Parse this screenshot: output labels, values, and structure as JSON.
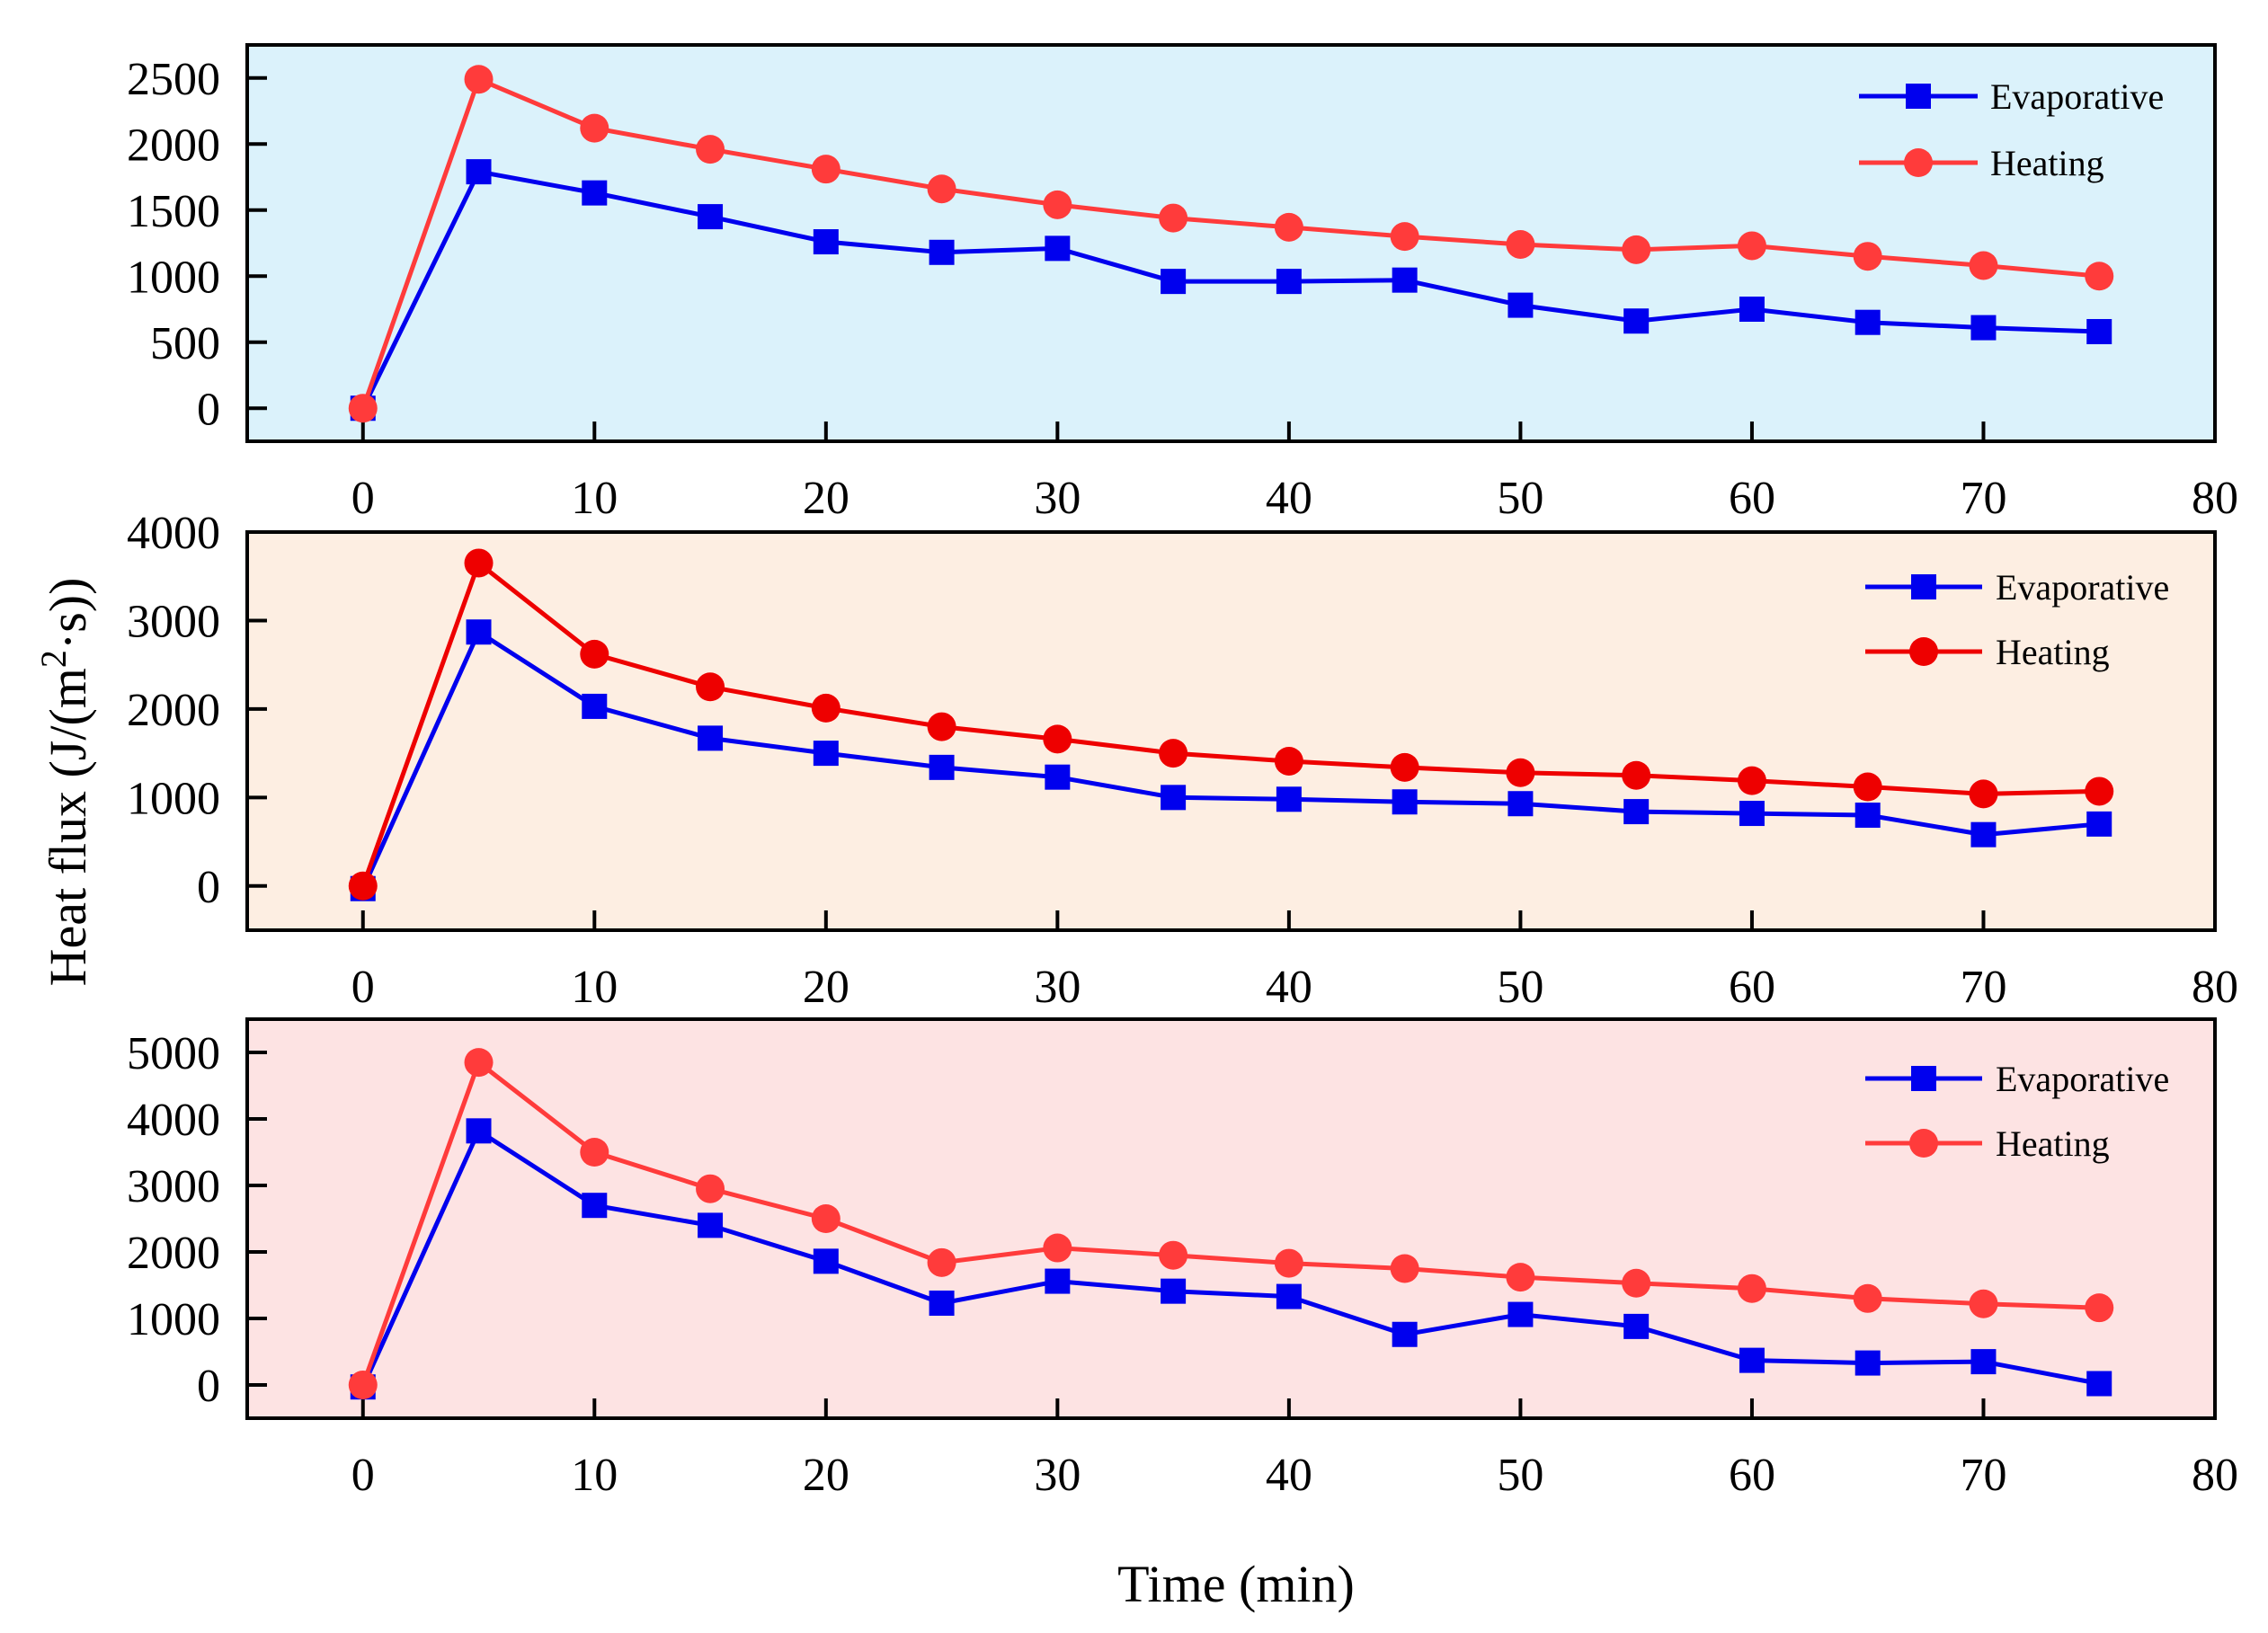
{
  "figure": {
    "ylabel_prefix": "Heat flux (J/(m",
    "ylabel_superscript": "2",
    "ylabel_suffix": "·s))",
    "xlabel": "Time (min)",
    "colors": {
      "evaporative": "#0000ee",
      "heating": "#ff3b3b",
      "heating_mid": "#ee0000"
    }
  },
  "chart_data": [
    {
      "type": "line",
      "background": "#dbf2fb",
      "x": [
        0,
        5,
        10,
        15,
        20,
        25,
        30,
        35,
        40,
        45,
        50,
        55,
        60,
        65,
        70,
        75
      ],
      "xlim": [
        -5,
        80
      ],
      "xticks": [
        "0",
        "10",
        "20",
        "30",
        "40",
        "50",
        "60",
        "70",
        "80"
      ],
      "ylim": [
        -250,
        2750
      ],
      "yticks": [
        "0",
        "500",
        "1000",
        "1500",
        "2000",
        "2500"
      ],
      "series": [
        {
          "name": "Evaporative",
          "marker": "square",
          "color": "#0000ee",
          "values": [
            0,
            1790,
            1630,
            1450,
            1260,
            1180,
            1210,
            960,
            960,
            970,
            780,
            660,
            750,
            650,
            610,
            580
          ]
        },
        {
          "name": "Heating",
          "marker": "circle",
          "color": "#ff3b3b",
          "values": [
            0,
            2490,
            2120,
            1960,
            1810,
            1660,
            1540,
            1440,
            1370,
            1300,
            1240,
            1200,
            1230,
            1150,
            1080,
            1000
          ]
        }
      ]
    },
    {
      "type": "line",
      "background": "#fdeee2",
      "x": [
        0,
        5,
        10,
        15,
        20,
        25,
        30,
        35,
        40,
        45,
        50,
        55,
        60,
        65,
        70,
        75
      ],
      "xlim": [
        -5,
        80
      ],
      "xticks": [
        "0",
        "10",
        "20",
        "30",
        "40",
        "50",
        "60",
        "70",
        "80"
      ],
      "ylim": [
        -500,
        4000
      ],
      "yticks": [
        "0",
        "1000",
        "2000",
        "3000",
        "4000"
      ],
      "series": [
        {
          "name": "Evaporative",
          "marker": "square",
          "color": "#0000ee",
          "values": [
            -30,
            2870,
            2030,
            1670,
            1500,
            1340,
            1230,
            1000,
            980,
            950,
            930,
            840,
            820,
            800,
            580,
            700
          ]
        },
        {
          "name": "Heating",
          "marker": "circle",
          "color": "#ee0000",
          "values": [
            0,
            3650,
            2620,
            2250,
            2010,
            1800,
            1660,
            1500,
            1410,
            1340,
            1280,
            1250,
            1190,
            1120,
            1040,
            1070
          ]
        }
      ]
    },
    {
      "type": "line",
      "background": "#fde3e3",
      "x": [
        0,
        5,
        10,
        15,
        20,
        25,
        30,
        35,
        40,
        45,
        50,
        55,
        60,
        65,
        70,
        75
      ],
      "xlim": [
        -5,
        80
      ],
      "xticks": [
        "0",
        "10",
        "20",
        "30",
        "40",
        "50",
        "60",
        "70",
        "80"
      ],
      "ylim": [
        -500,
        5500
      ],
      "yticks": [
        "0",
        "1000",
        "2000",
        "3000",
        "4000",
        "5000"
      ],
      "series": [
        {
          "name": "Evaporative",
          "marker": "square",
          "color": "#0000ee",
          "values": [
            -30,
            3820,
            2700,
            2400,
            1860,
            1230,
            1560,
            1410,
            1330,
            760,
            1060,
            880,
            370,
            330,
            350,
            20
          ]
        },
        {
          "name": "Heating",
          "marker": "circle",
          "color": "#ff3b3b",
          "values": [
            0,
            4850,
            3500,
            2950,
            2500,
            1840,
            2060,
            1950,
            1830,
            1750,
            1620,
            1530,
            1450,
            1300,
            1220,
            1160
          ]
        }
      ]
    }
  ]
}
